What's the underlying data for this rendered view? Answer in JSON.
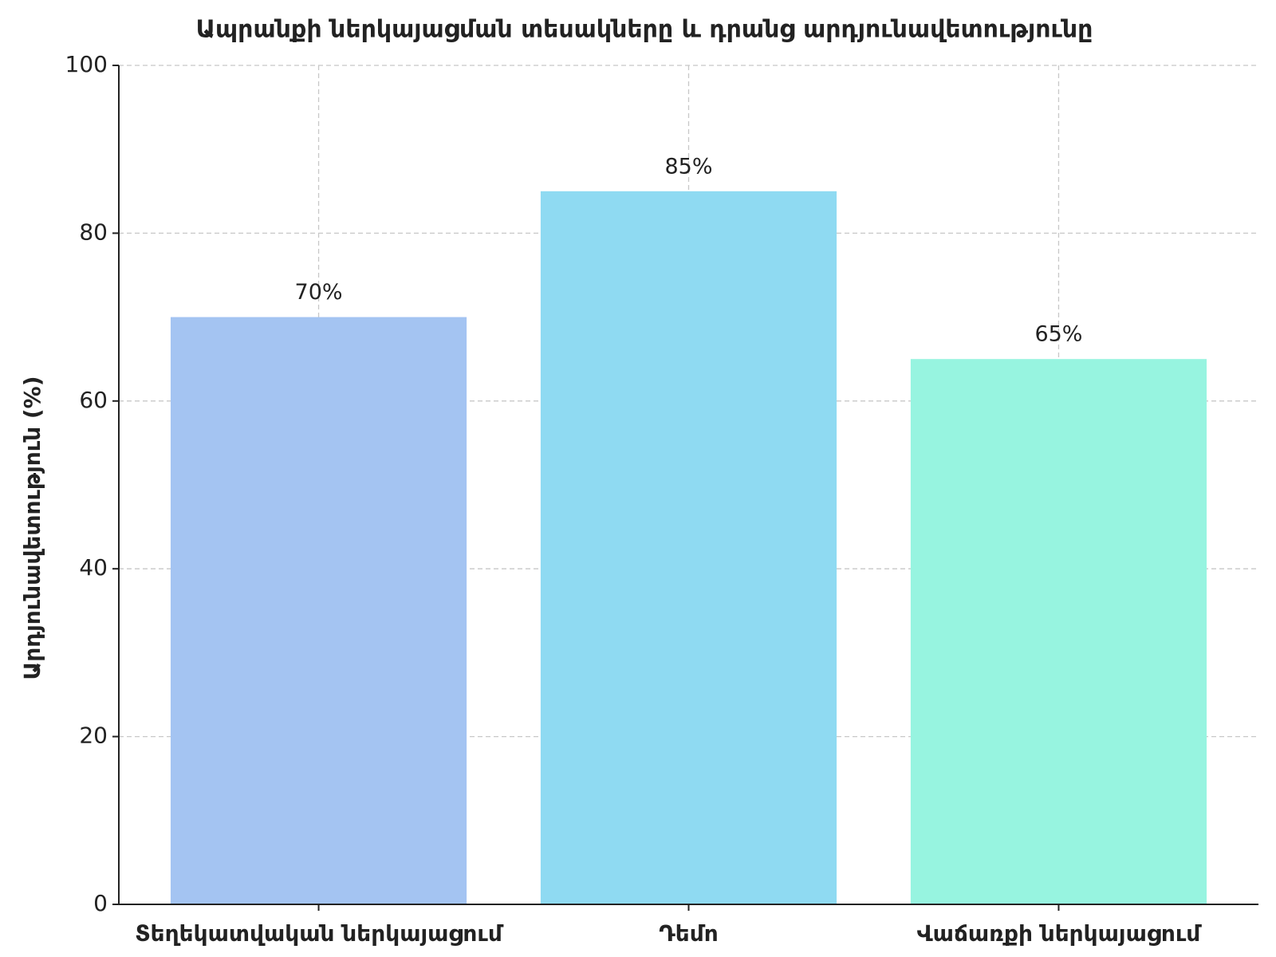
{
  "chart_data": {
    "type": "bar",
    "title": "Ապրանքի ներկայացման տեսակները և դրանց արդյունավետությունը",
    "y_label": "Արդյունավետություն (%)",
    "categories": [
      "Տեղեկատվական ներկայացում",
      "Դեմո",
      "Վաճառքի ներկայացում"
    ],
    "values": [
      70,
      85,
      65
    ],
    "value_labels": [
      "70%",
      "85%",
      "65%"
    ],
    "colors": [
      "#a4c4f2",
      "#8fdaf2",
      "#97f4e0"
    ],
    "ylim": [
      0,
      100
    ],
    "yticks": [
      0,
      20,
      40,
      60,
      80,
      100
    ],
    "grid": true
  }
}
